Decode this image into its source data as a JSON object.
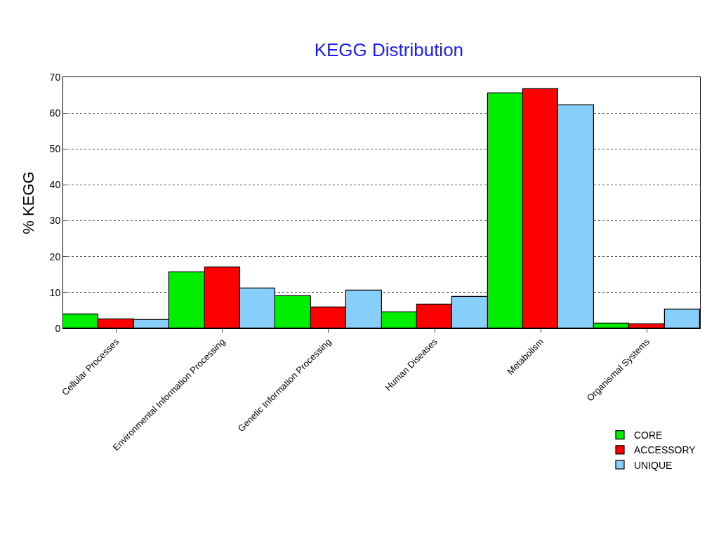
{
  "chart_data": {
    "type": "bar",
    "title": "KEGG Distribution",
    "ylabel": "% KEGG",
    "categories": [
      "Cellular Processes",
      "Environmental Information Processing",
      "Genetic Information Processing",
      "Human Diseases",
      "Metabolism",
      "Organismal Systems"
    ],
    "series": [
      {
        "name": "CORE",
        "color": "#00ee00",
        "values": [
          4.0,
          15.7,
          8.9,
          4.5,
          65.6,
          1.3
        ]
      },
      {
        "name": "ACCESSORY",
        "color": "#ff0000",
        "values": [
          2.6,
          17.1,
          5.8,
          6.6,
          66.6,
          1.2
        ]
      },
      {
        "name": "UNIQUE",
        "color": "#87cefa",
        "values": [
          2.3,
          11.1,
          10.5,
          8.8,
          62.2,
          5.2
        ]
      }
    ],
    "ylim": [
      0,
      70
    ],
    "yticks": [
      0,
      10,
      20,
      30,
      40,
      50,
      60,
      70
    ],
    "grid": "y",
    "legend": "bottom right"
  }
}
